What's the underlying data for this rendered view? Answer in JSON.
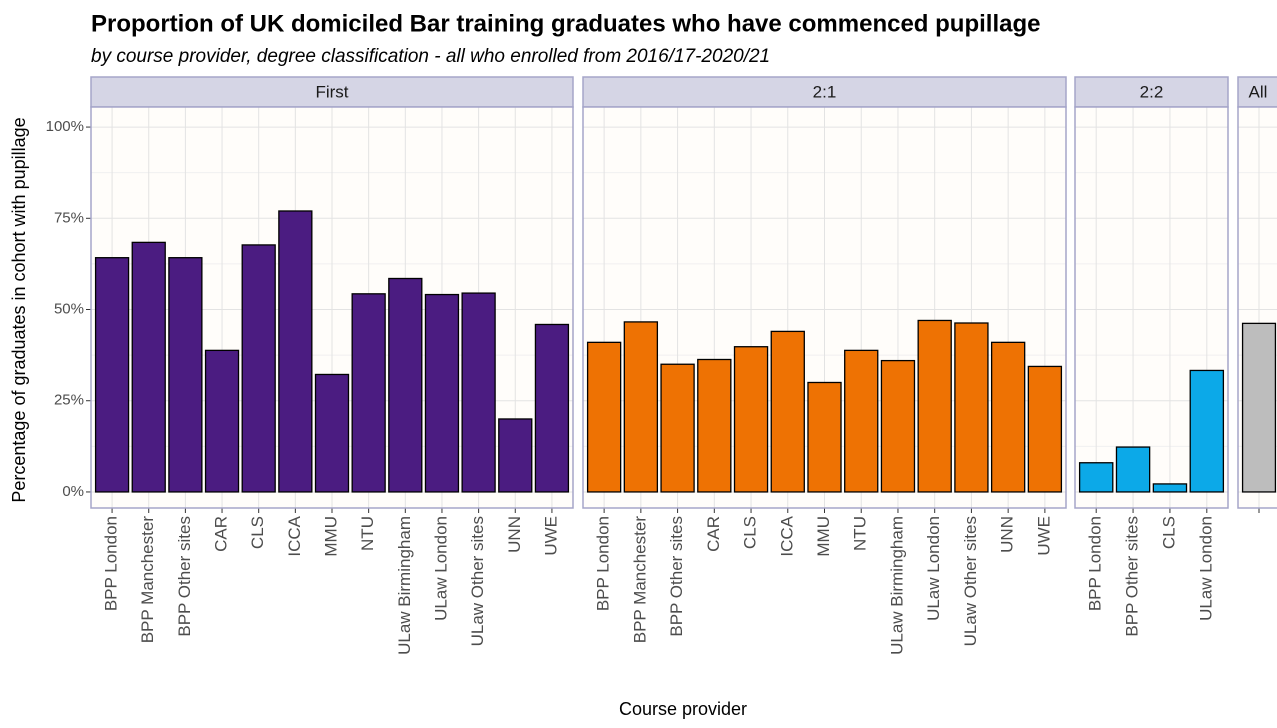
{
  "title": "Proportion of UK domiciled Bar training graduates who have commenced pupillage",
  "subtitle": "by course provider, degree classification - all who enrolled from 2016/17-2020/21",
  "y_label": "Percentage of graduates in cohort with pupillage",
  "x_label": "Course provider",
  "chart_data": [
    {
      "type": "bar",
      "title": "First",
      "color": "#4b1c81",
      "categories": [
        "BPP London",
        "BPP Manchester",
        "BPP Other sites",
        "CAR",
        "CLS",
        "ICCA",
        "MMU",
        "NTU",
        "ULaw Birmingham",
        "ULaw London",
        "ULaw Other sites",
        "UNN",
        "UWE"
      ],
      "values": [
        64.2,
        68.4,
        64.2,
        38.8,
        67.7,
        77,
        32.2,
        54.3,
        58.5,
        54.1,
        54.5,
        20,
        45.9
      ],
      "ylim": [
        -4.4,
        105.5
      ],
      "yticks": [
        {
          "value": 0,
          "label": "0%"
        },
        {
          "value": 25,
          "label": "25%"
        },
        {
          "value": 50,
          "label": "50%"
        },
        {
          "value": 75,
          "label": "75%"
        },
        {
          "value": 100,
          "label": "100%"
        }
      ],
      "grid": true
    },
    {
      "type": "bar",
      "title": "2:1",
      "color": "#ee7203",
      "categories": [
        "BPP London",
        "BPP Manchester",
        "BPP Other sites",
        "CAR",
        "CLS",
        "ICCA",
        "MMU",
        "NTU",
        "ULaw Birmingham",
        "ULaw London",
        "ULaw Other sites",
        "UNN",
        "UWE"
      ],
      "values": [
        41,
        46.6,
        35,
        36.3,
        39.8,
        44,
        30,
        38.8,
        36,
        47,
        46.3,
        41,
        34.4
      ]
    },
    {
      "type": "bar",
      "title": "2:2",
      "color": "#0ca9e8",
      "categories": [
        "BPP London",
        "BPP Other sites",
        "CLS",
        "ULaw London"
      ],
      "values": [
        8,
        12.3,
        2.2,
        33.3
      ]
    },
    {
      "type": "bar",
      "title": "All",
      "color": "#bdbdbd",
      "categories": [
        null
      ],
      "values": [
        46.2
      ]
    }
  ]
}
